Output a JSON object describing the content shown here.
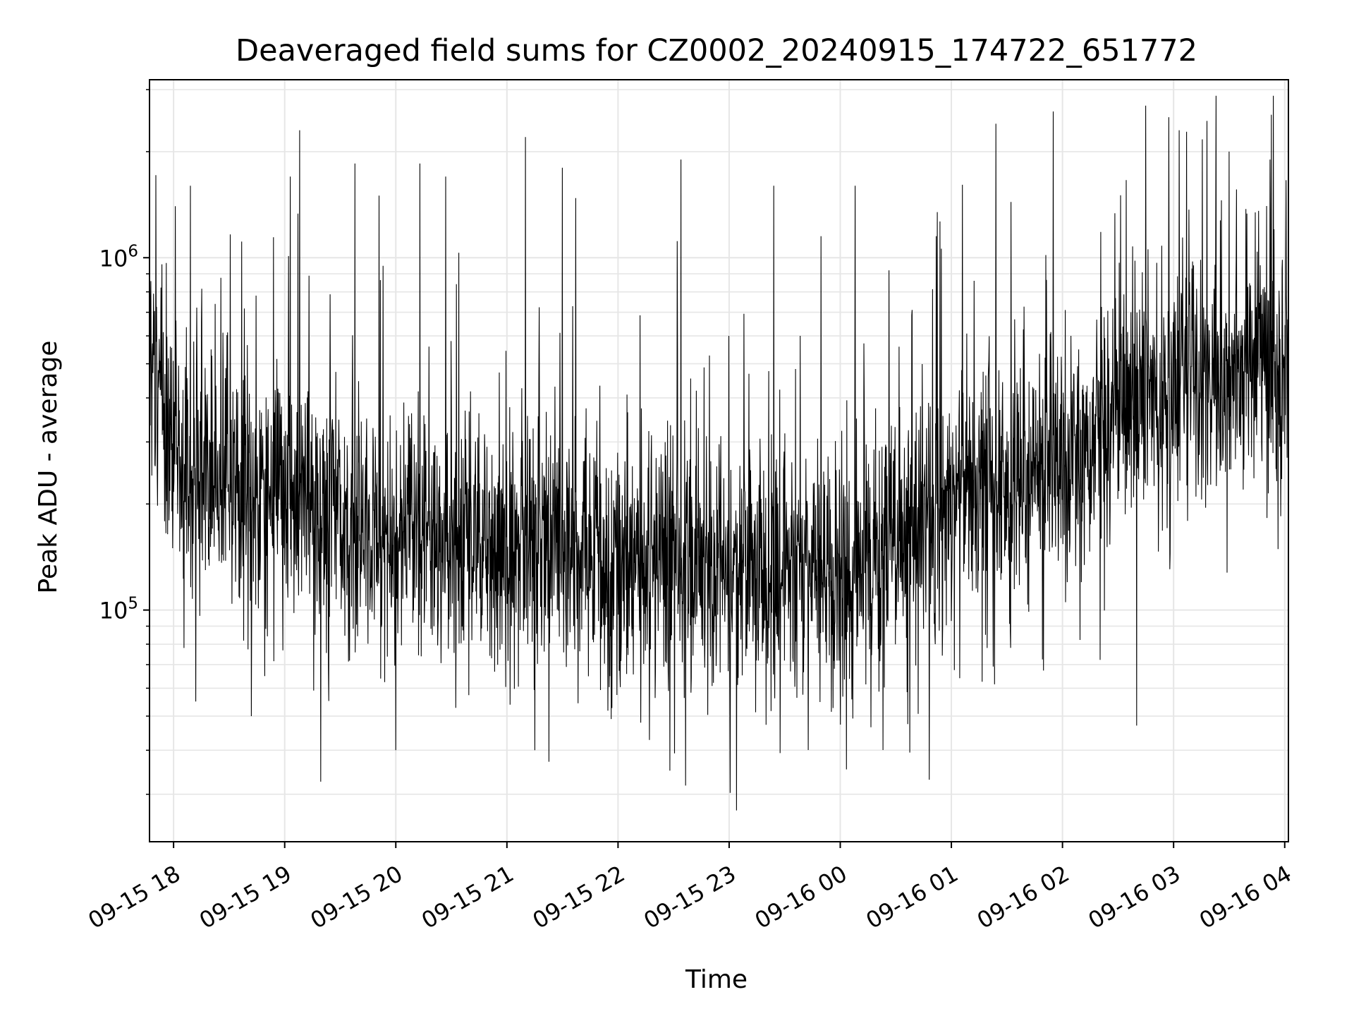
{
  "chart_data": {
    "type": "line",
    "title": "Deaveraged field sums for CZ0002_20240915_174722_651772",
    "xlabel": "Time",
    "ylabel": "Peak ADU - average",
    "yscale": "log",
    "ylim": [
      22000,
      3200000
    ],
    "xlim": [
      "2024-09-15 17:47",
      "2024-09-16 04:02"
    ],
    "grid": true,
    "line_color": "#000000",
    "x_ticks": [
      {
        "value": "2024-09-15 18:00",
        "label": "09-15 18"
      },
      {
        "value": "2024-09-15 19:00",
        "label": "09-15 19"
      },
      {
        "value": "2024-09-15 20:00",
        "label": "09-15 20"
      },
      {
        "value": "2024-09-15 21:00",
        "label": "09-15 21"
      },
      {
        "value": "2024-09-15 22:00",
        "label": "09-15 22"
      },
      {
        "value": "2024-09-15 23:00",
        "label": "09-15 23"
      },
      {
        "value": "2024-09-16 00:00",
        "label": "09-16 00"
      },
      {
        "value": "2024-09-16 01:00",
        "label": "09-16 01"
      },
      {
        "value": "2024-09-16 02:00",
        "label": "09-16 02"
      },
      {
        "value": "2024-09-16 03:00",
        "label": "09-16 03"
      },
      {
        "value": "2024-09-16 04:00",
        "label": "09-16 04"
      }
    ],
    "y_ticks": [
      {
        "value": 100000,
        "base": "10",
        "exp": "5"
      },
      {
        "value": 1000000,
        "base": "10",
        "exp": "6"
      }
    ],
    "envelope": {
      "x": [
        "2024-09-15 17:47",
        "2024-09-15 18:00",
        "2024-09-15 18:30",
        "2024-09-15 19:00",
        "2024-09-15 19:30",
        "2024-09-15 20:00",
        "2024-09-15 20:30",
        "2024-09-15 21:00",
        "2024-09-15 21:30",
        "2024-09-15 22:00",
        "2024-09-15 22:30",
        "2024-09-15 23:00",
        "2024-09-15 23:30",
        "2024-09-16 00:00",
        "2024-09-16 00:30",
        "2024-09-16 01:00",
        "2024-09-16 01:30",
        "2024-09-16 02:00",
        "2024-09-16 02:30",
        "2024-09-16 03:00",
        "2024-09-16 03:30",
        "2024-09-16 04:02"
      ],
      "median": [
        500000,
        300000,
        220000,
        200000,
        190000,
        165000,
        150000,
        150000,
        145000,
        140000,
        140000,
        135000,
        125000,
        120000,
        160000,
        210000,
        230000,
        270000,
        350000,
        420000,
        450000,
        500000
      ]
    },
    "spikes": [
      {
        "x": "2024-09-15 18:01",
        "y": 1400000
      },
      {
        "x": "2024-09-15 18:09",
        "y": 1600000
      },
      {
        "x": "2024-09-15 18:12",
        "y": 55000
      },
      {
        "x": "2024-09-15 18:42",
        "y": 50000
      },
      {
        "x": "2024-09-15 19:03",
        "y": 1700000
      },
      {
        "x": "2024-09-15 19:08",
        "y": 2300000
      },
      {
        "x": "2024-09-15 19:38",
        "y": 1850000
      },
      {
        "x": "2024-09-15 19:51",
        "y": 1500000
      },
      {
        "x": "2024-09-15 20:00",
        "y": 40000
      },
      {
        "x": "2024-09-15 20:13",
        "y": 1850000
      },
      {
        "x": "2024-09-15 20:27",
        "y": 1700000
      },
      {
        "x": "2024-09-15 21:10",
        "y": 2200000
      },
      {
        "x": "2024-09-15 21:15",
        "y": 40000
      },
      {
        "x": "2024-09-15 21:30",
        "y": 1800000
      },
      {
        "x": "2024-09-15 22:28",
        "y": 35000
      },
      {
        "x": "2024-09-15 22:34",
        "y": 1900000
      },
      {
        "x": "2024-09-15 23:04",
        "y": 27000
      },
      {
        "x": "2024-09-15 23:24",
        "y": 1600000
      },
      {
        "x": "2024-09-16 00:08",
        "y": 1600000
      },
      {
        "x": "2024-09-16 00:48",
        "y": 33000
      },
      {
        "x": "2024-09-16 01:24",
        "y": 2400000
      },
      {
        "x": "2024-09-16 01:55",
        "y": 2600000
      },
      {
        "x": "2024-09-16 02:40",
        "y": 47000
      },
      {
        "x": "2024-09-16 02:45",
        "y": 2700000
      },
      {
        "x": "2024-09-16 03:03",
        "y": 2300000
      },
      {
        "x": "2024-09-16 03:30",
        "y": 2000000
      },
      {
        "x": "2024-09-16 03:52",
        "y": 1900000
      }
    ]
  }
}
